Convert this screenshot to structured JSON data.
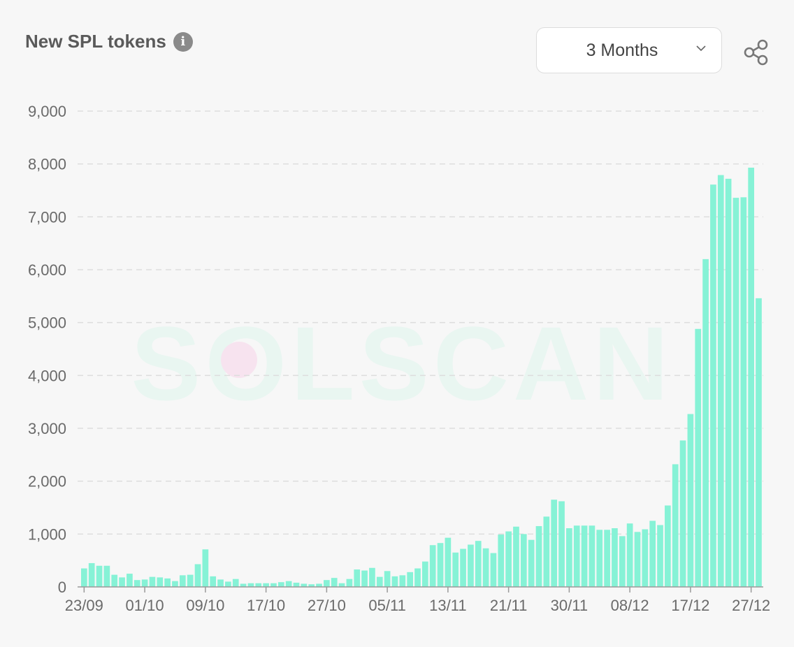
{
  "header": {
    "title": "New SPL tokens",
    "info_icon": "info-icon",
    "share_icon": "share-icon"
  },
  "range_select": {
    "selected": "3 Months",
    "icon": "chevron-down-icon"
  },
  "watermark": {
    "text": "SOLSCAN"
  },
  "colors": {
    "bar": "#86f2d6",
    "grid": "#dddddd",
    "axis": "#9a9a9a",
    "tick_text": "#6a6a6a",
    "watermark": "#e9f6f1",
    "watermark_dot": "#f7e3ef"
  },
  "chart_data": {
    "type": "bar",
    "title": "New SPL tokens",
    "xlabel": "",
    "ylabel": "",
    "ylim": [
      0,
      9000
    ],
    "yticks": [
      0,
      1000,
      2000,
      3000,
      4000,
      5000,
      6000,
      7000,
      8000,
      9000
    ],
    "ytick_labels": [
      "0",
      "1,000",
      "2,000",
      "3,000",
      "4,000",
      "5,000",
      "6,000",
      "7,000",
      "8,000",
      "9,000"
    ],
    "xtick_labels": [
      {
        "label": "23/09",
        "index": 0
      },
      {
        "label": "01/10",
        "index": 8
      },
      {
        "label": "09/10",
        "index": 16
      },
      {
        "label": "17/10",
        "index": 24
      },
      {
        "label": "27/10",
        "index": 32
      },
      {
        "label": "05/11",
        "index": 40
      },
      {
        "label": "13/11",
        "index": 48
      },
      {
        "label": "21/11",
        "index": 56
      },
      {
        "label": "30/11",
        "index": 64
      },
      {
        "label": "08/12",
        "index": 72
      },
      {
        "label": "17/12",
        "index": 80
      },
      {
        "label": "27/12",
        "index": 88
      }
    ],
    "grid": true,
    "legend": "none",
    "values": [
      350,
      450,
      400,
      400,
      230,
      180,
      250,
      130,
      140,
      190,
      180,
      160,
      110,
      220,
      230,
      430,
      710,
      200,
      140,
      100,
      150,
      60,
      70,
      70,
      70,
      70,
      90,
      110,
      80,
      60,
      50,
      60,
      130,
      170,
      70,
      150,
      330,
      310,
      360,
      190,
      300,
      200,
      220,
      280,
      350,
      480,
      790,
      830,
      930,
      650,
      720,
      800,
      870,
      730,
      640,
      990,
      1050,
      1140,
      1000,
      890,
      1150,
      1330,
      1650,
      1620,
      1110,
      1160,
      1160,
      1160,
      1080,
      1080,
      1110,
      960,
      1200,
      1040,
      1090,
      1250,
      1170,
      1540,
      2320,
      2770,
      3270,
      4880,
      6200,
      7610,
      7790,
      7720,
      7360,
      7370,
      7930,
      5460
    ]
  }
}
